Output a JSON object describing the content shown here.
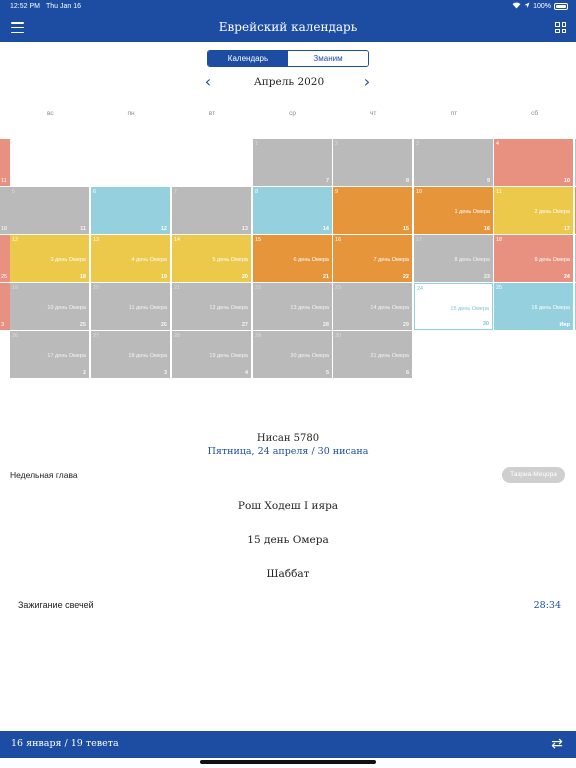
{
  "status": {
    "time": "12:52 PM",
    "date": "Thu Jan 16",
    "battery": "100%"
  },
  "header": {
    "title": "Еврейский календарь"
  },
  "segments": {
    "calendar": "Календарь",
    "zmanim": "Зманим",
    "active": "calendar"
  },
  "month": {
    "title": "Апрель 2020"
  },
  "weekdays": [
    "вс",
    "пн",
    "вт",
    "ср",
    "чт",
    "пт",
    "сб"
  ],
  "side_days": [
    "11",
    "18",
    "25",
    "3"
  ],
  "right_strips": [
    "#94d0dd",
    "#e6953a",
    "#94d0dd",
    "#94d0dd"
  ],
  "calendar": {
    "weeks": [
      [
        null,
        null,
        null,
        {
          "day": "1",
          "heb": "7",
          "type": "gray"
        },
        {
          "day": "2",
          "heb": "8",
          "type": "gray"
        },
        {
          "day": "3",
          "heb": "9",
          "type": "gray"
        },
        {
          "day": "4",
          "heb": "10",
          "type": "red"
        }
      ],
      [
        {
          "day": "5",
          "heb": "11",
          "type": "gray"
        },
        {
          "day": "6",
          "heb": "12",
          "type": "cyan"
        },
        {
          "day": "7",
          "heb": "13",
          "type": "gray"
        },
        {
          "day": "8",
          "heb": "14",
          "type": "cyan"
        },
        {
          "day": "9",
          "heb": "15",
          "type": "orange"
        },
        {
          "day": "10",
          "heb": "16",
          "type": "orange",
          "note": "1 день Омера"
        },
        {
          "day": "11",
          "heb": "17",
          "type": "yellow",
          "note": "2 день Омера"
        }
      ],
      [
        {
          "day": "12",
          "heb": "18",
          "type": "yellow",
          "note": "3 день Омера"
        },
        {
          "day": "13",
          "heb": "19",
          "type": "yellow",
          "note": "4 день Омера"
        },
        {
          "day": "14",
          "heb": "20",
          "type": "yellow",
          "note": "5 день Омера"
        },
        {
          "day": "15",
          "heb": "21",
          "type": "orange",
          "note": "6 день Омера"
        },
        {
          "day": "16",
          "heb": "22",
          "type": "orange",
          "note": "7 день Омера"
        },
        {
          "day": "17",
          "heb": "23",
          "type": "gray",
          "note": "8 день Омера"
        },
        {
          "day": "18",
          "heb": "24",
          "type": "red",
          "note": "9 день Омера"
        }
      ],
      [
        {
          "day": "19",
          "heb": "25",
          "type": "gray",
          "note": "10 день Омера"
        },
        {
          "day": "20",
          "heb": "26",
          "type": "gray",
          "note": "11 день Омера"
        },
        {
          "day": "21",
          "heb": "27",
          "type": "gray",
          "note": "12 день Омера"
        },
        {
          "day": "22",
          "heb": "28",
          "type": "gray",
          "note": "13 день Омера"
        },
        {
          "day": "23",
          "heb": "29",
          "type": "gray",
          "note": "14 день Омера"
        },
        {
          "day": "24",
          "heb": "30",
          "type": "selected",
          "note": "15 день Омера"
        },
        {
          "day": "25",
          "heb": "Ияр",
          "type": "cyan",
          "note": "16 день Омера"
        }
      ],
      [
        {
          "day": "26",
          "heb": "2",
          "type": "gray",
          "note": "17 день Омера"
        },
        {
          "day": "27",
          "heb": "3",
          "type": "gray",
          "note": "18 день Омера"
        },
        {
          "day": "28",
          "heb": "4",
          "type": "gray",
          "note": "19 день Омера"
        },
        {
          "day": "29",
          "heb": "5",
          "type": "gray",
          "note": "20 день Омера"
        },
        {
          "day": "30",
          "heb": "6",
          "type": "gray",
          "note": "21 день Омера"
        },
        null,
        null
      ]
    ]
  },
  "details": {
    "hebrew_month": "Нисан 5780",
    "date_line": "Пятница, 24 апреля / 30 нисана",
    "parsha_label": "Недельная глава",
    "parsha_button": "Тазриа-Мецора",
    "events": [
      "Рош Ходеш I ияра",
      "15 день Омера",
      "Шаббат"
    ],
    "candle_label": "Зажигание свечей",
    "candle_time": "28:34"
  },
  "footer": {
    "date_text": "16 января / 19 тевета"
  },
  "colors": {
    "primary": "#1c4da3",
    "gray": "#bababa",
    "cyan": "#94d0dd",
    "orange": "#e6953a",
    "yellow": "#ecc84b",
    "red": "#e89181"
  }
}
